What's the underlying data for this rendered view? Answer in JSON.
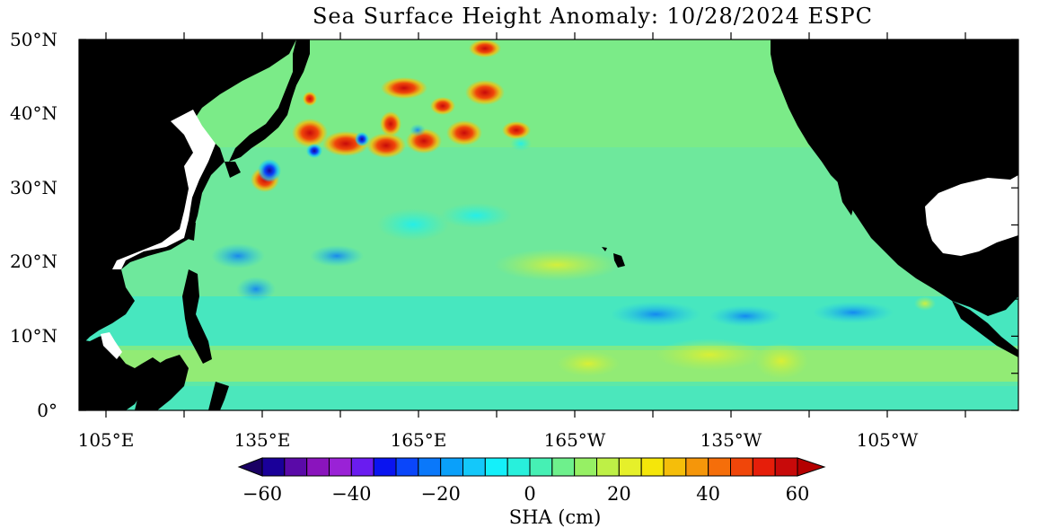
{
  "title": "Sea Surface Height Anomaly: 10/28/2024 ESPC",
  "lat_labels": [
    "50°N",
    "40°N",
    "30°N",
    "20°N",
    "10°N",
    "0°"
  ],
  "lon_labels": [
    "105°E",
    "135°E",
    "165°E",
    "165°W",
    "135°W",
    "105°W"
  ],
  "colorbar": {
    "tick_labels": [
      "−60",
      "−40",
      "−20",
      "0",
      "20",
      "40",
      "60"
    ],
    "label": "SHA (cm)",
    "colors": [
      "#1a0099",
      "#5a0aa8",
      "#8a14bd",
      "#9a22d6",
      "#6a1cf0",
      "#0a14f0",
      "#0a46fa",
      "#0a78fa",
      "#0aa0fa",
      "#14c8fa",
      "#14f0fa",
      "#28f0dc",
      "#46f0b4",
      "#6ef08c",
      "#96f064",
      "#bef046",
      "#e6f02a",
      "#f5e60a",
      "#f5be0a",
      "#f5960a",
      "#f56e0a",
      "#f0460a",
      "#e61e0a",
      "#c80a0a"
    ],
    "under_color": "#1a0064",
    "over_color": "#b40000"
  },
  "colors": {
    "land": "#000000",
    "ocean_base": "#5ae6b4",
    "nodata": "#ffffff"
  }
}
